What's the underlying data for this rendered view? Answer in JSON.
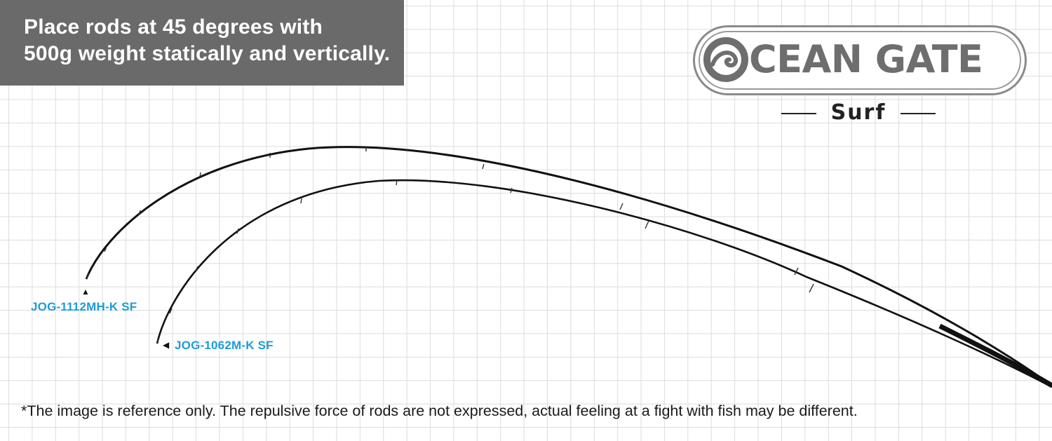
{
  "header": {
    "line1": "Place rods at 45 degrees with",
    "line2": "500g weight statically and vertically."
  },
  "logo": {
    "wordmark": "CEAN GATE",
    "icon": "ocean-wave-o-icon",
    "sub_brand": "Surf"
  },
  "rods": [
    {
      "model": "JOG-1112MH-K SF",
      "tip_marker": "▲"
    },
    {
      "model": "JOG-1062M-K SF",
      "tip_marker": "◀"
    }
  ],
  "footnote": "*The image is reference only. The repulsive force of rods are not expressed, actual feeling at a fight with fish may be different.",
  "colors": {
    "header_bg": "#6a6a6a",
    "label_blue": "#1e9bd9",
    "logo_gray": "#6e6e6e",
    "rod_black": "#111111",
    "grid_line": "#dcdcdc"
  }
}
